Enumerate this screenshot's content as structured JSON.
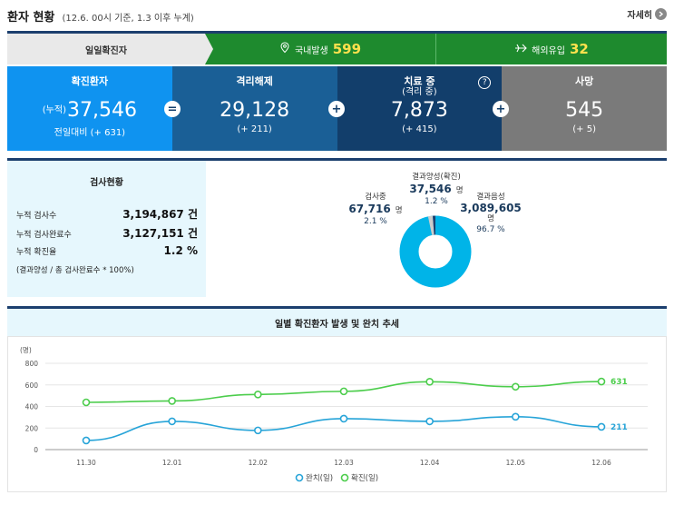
{
  "header": {
    "title": "환자 현황",
    "subtitle": "(12.6. 00시 기준, 1.3 이후 누계)",
    "detail_label": "자세히"
  },
  "daily": {
    "label": "일일확진자",
    "domestic_label": "국내발생",
    "domestic_value": "599",
    "overseas_label": "해외유입",
    "overseas_value": "32"
  },
  "stats": {
    "confirmed": {
      "label": "확진환자",
      "prefix": "(누적)",
      "value": "37,546",
      "change": "전일대비 (+ 631)"
    },
    "released": {
      "label": "격리해제",
      "value": "29,128",
      "change": "(+ 211)"
    },
    "treatment": {
      "label": "치료 중",
      "sublabel": "(격리 중)",
      "value": "7,873",
      "change": "(+ 415)"
    },
    "deaths": {
      "label": "사망",
      "value": "545",
      "change": "(+ 5)"
    },
    "op_eq": "=",
    "op_plus1": "+",
    "op_plus2": "+",
    "op_plus3": "+",
    "help": "?"
  },
  "tests": {
    "title": "검사현황",
    "rows": [
      {
        "k": "누적 검사수",
        "v": "3,194,867 건"
      },
      {
        "k": "누적 검사완료수",
        "v": "3,127,151 건"
      },
      {
        "k": "누적 확진율",
        "v": "1.2 %"
      }
    ],
    "note": "(결과양성 / 총 검사완료수 * 100%)"
  },
  "donut": {
    "positive": {
      "label": "결과양성(확진)",
      "num": "37,546",
      "unit": "명",
      "pct": "1.2 %",
      "value": 1.2
    },
    "testing": {
      "label": "검사중",
      "num": "67,716",
      "unit": "명",
      "pct": "2.1 %",
      "value": 2.1
    },
    "negative": {
      "label": "결과음성",
      "num": "3,089,605",
      "unit": "명",
      "pct": "96.7 %",
      "value": 96.7
    },
    "colors": {
      "negative": "#00b4e8",
      "testing": "#cccccc",
      "positive": "#1c3f6e"
    }
  },
  "chart_title": "일별 확진환자 발생 및 완치 추세",
  "chart_data": {
    "type": "line",
    "ylabel": "(명)",
    "ylim": [
      0,
      800
    ],
    "yticks": [
      "0",
      "200",
      "400",
      "600",
      "800"
    ],
    "categories": [
      "11.30",
      "12.01",
      "12.02",
      "12.03",
      "12.04",
      "12.05",
      "12.06"
    ],
    "series": [
      {
        "name": "완치(일)",
        "color": "#27a4d8",
        "values": [
          85,
          262,
          178,
          287,
          262,
          305,
          211
        ],
        "end_label": "211"
      },
      {
        "name": "확진(일)",
        "color": "#4ccd4c",
        "values": [
          438,
          451,
          511,
          540,
          629,
          583,
          631
        ],
        "end_label": "631"
      }
    ]
  }
}
